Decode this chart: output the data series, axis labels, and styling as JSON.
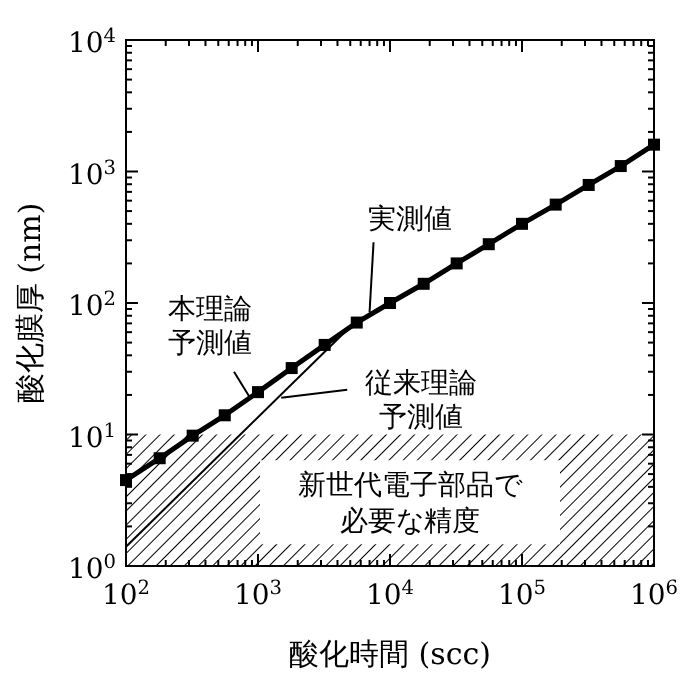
{
  "chart_data": {
    "type": "line",
    "xlabel": "酸化時間 (scc)",
    "ylabel": "酸化膜厚 (nm)",
    "log": "xy",
    "marker": "square",
    "grid": false,
    "xlim": [
      100,
      1000000
    ],
    "ylim": [
      1,
      10000
    ],
    "xticks": [
      {
        "value": 100,
        "label": "10$^{2}$"
      },
      {
        "value": 1000,
        "label": "10$^{3}$"
      },
      {
        "value": 10000,
        "label": "10$^{4}$"
      },
      {
        "value": 100000,
        "label": "10$^{5}$"
      },
      {
        "value": 1000000,
        "label": "10$^{6}$"
      }
    ],
    "yticks": [
      {
        "value": 1,
        "label": "10$^{0}$"
      },
      {
        "value": 10,
        "label": "10$^{1}$"
      },
      {
        "value": 100,
        "label": "10$^{2}$"
      },
      {
        "value": 1000,
        "label": "10$^{3}$"
      },
      {
        "value": 10000,
        "label": "10$^{4}$"
      }
    ],
    "series": [
      {
        "color": "#000000",
        "x": [
          100,
          180,
          320,
          560,
          1000,
          1800,
          3200,
          5600,
          10000,
          18000,
          32000,
          56000,
          100000,
          180000,
          320000,
          560000,
          1000000
        ],
        "values": [
          4.5,
          6.6,
          9.8,
          14,
          21,
          32,
          48,
          71,
          100,
          140,
          200,
          280,
          400,
          560,
          790,
          1100,
          1600
        ]
      },
      {
        "color": "#000000",
        "marker": "none",
        "x": [
          100,
          5000
        ],
        "values": [
          1.4,
          66
        ]
      }
    ],
    "bands": [
      {
        "axis": "y",
        "from": 1,
        "to": 10,
        "label": "新世代電子部品で必要な精度",
        "color": "#000000"
      }
    ],
    "annotations": [
      {
        "text": "実測値",
        "x": 7000,
        "y": 85
      },
      {
        "text": "本理論予測値",
        "x": 870,
        "y": 19
      },
      {
        "text": "従来理論予測値",
        "x": 1500,
        "y": 19
      }
    ]
  }
}
